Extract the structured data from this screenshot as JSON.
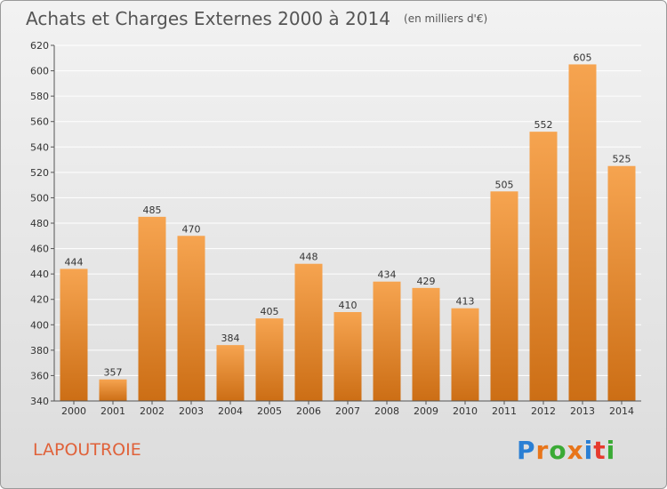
{
  "title": {
    "main": "Achats et Charges Externes 2000 à 2014",
    "unit": "(en milliers d'€)"
  },
  "commune": "LAPOUTROIE",
  "logo": {
    "text": "Proxiti",
    "letters": [
      {
        "char": "P",
        "color": "#2a7fd4"
      },
      {
        "char": "r",
        "color": "#e8751a"
      },
      {
        "char": "o",
        "color": "#3aaa35"
      },
      {
        "char": "x",
        "color": "#e8751a"
      },
      {
        "char": "i",
        "color": "#2a7fd4"
      },
      {
        "char": "t",
        "color": "#e63b2e"
      },
      {
        "char": "i",
        "color": "#3aaa35"
      }
    ]
  },
  "colors": {
    "bar_top": "#f6a450",
    "bar_bottom": "#cc6e15",
    "grid": "#ffffff",
    "axis": "#555555"
  },
  "chart_data": {
    "type": "bar",
    "categories": [
      "2000",
      "2001",
      "2002",
      "2003",
      "2004",
      "2005",
      "2006",
      "2007",
      "2008",
      "2009",
      "2010",
      "2011",
      "2012",
      "2013",
      "2014"
    ],
    "values": [
      444,
      357,
      485,
      470,
      384,
      405,
      448,
      410,
      434,
      429,
      413,
      505,
      552,
      605,
      525
    ],
    "ylim": [
      340,
      620
    ],
    "yticks": [
      340,
      360,
      380,
      400,
      420,
      440,
      460,
      480,
      500,
      520,
      540,
      560,
      580,
      600,
      620
    ],
    "grid": true
  }
}
